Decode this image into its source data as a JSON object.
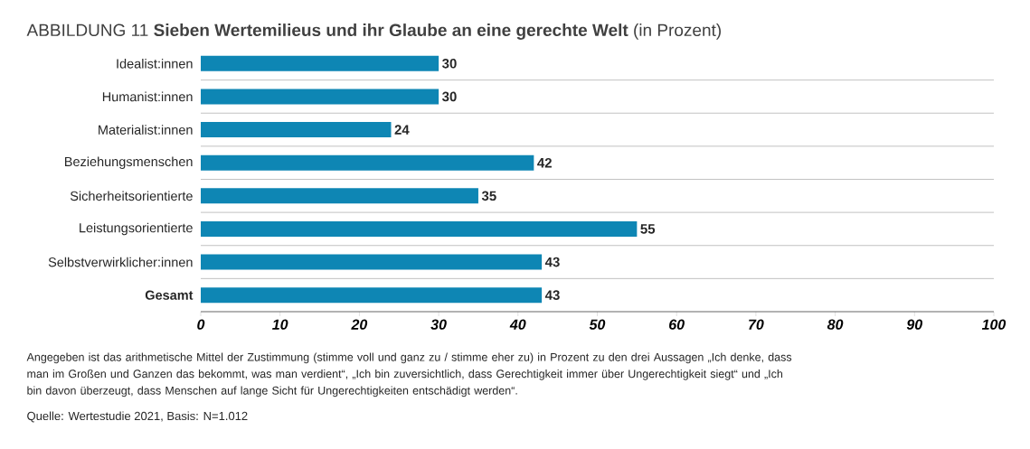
{
  "chart_data": {
    "type": "bar",
    "orientation": "horizontal",
    "title": "ABBILDUNG 11 **Sieben Wertemilieus und ihr Glaube an eine gerechte Welt** (in Prozent)",
    "categories": [
      "Idealist:innen",
      "Humanist:innen",
      "Materialist:innen",
      "Beziehungsmenschen",
      "Sicherheitsorientierte",
      "Leistungsorientierte",
      "Selbstverwirklicher:innen",
      "**Gesamt**"
    ],
    "values": [
      30,
      30,
      24,
      42,
      35,
      55,
      43,
      43
    ],
    "color": "#0e86b4",
    "xlim": [
      0,
      100
    ],
    "xticks": [
      0,
      10,
      20,
      30,
      40,
      50,
      60,
      70,
      80,
      90,
      100
    ],
    "grid": "y",
    "data_labels": true,
    "annotations": [
      "Angegeben ist das arithmetische Mittel der Zustimmung (stimme voll und ganz zu / stimme eher zu) in Prozent zu den drei Aussagen „Ich denke, dass man im Großen und Ganzen das bekommt, was man verdient“, „Ich bin zuversichtlich, dass Gerechtigkeit immer über Ungerechtigkeit siegt“ und „Ich bin davon überzeugt, dass Menschen auf lange Sicht für Ungerechtigkeiten entschädigt werden“.",
      "Quelle: Wertestudie 2021, Basis: N=1.012"
    ]
  }
}
